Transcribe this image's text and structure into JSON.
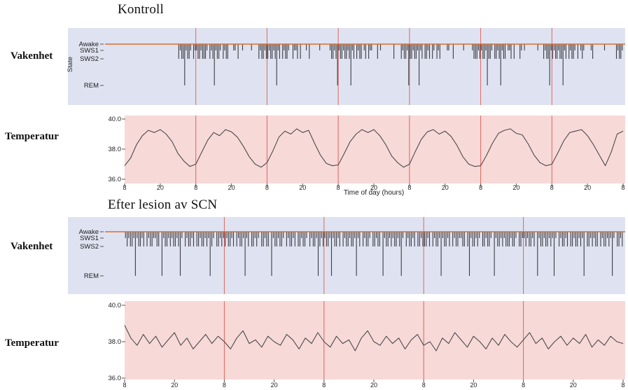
{
  "headings": {
    "control": "Kontroll",
    "lesion": "Efter lesion av SCN"
  },
  "row_labels": {
    "wakefulness": "Vakenhet",
    "temperature": "Temperatur"
  },
  "colors": {
    "hypnogram_bg": "#dfe3f1",
    "temp_bg": "#f7d9d8",
    "awake_line": "#d8702f",
    "grid_line": "#e0655a",
    "hypno_stroke": "#3b3b42",
    "temp_trace": "#4b4b4b",
    "tick": "#555555"
  },
  "chart_data": [
    {
      "id": "control_hypnogram",
      "type": "hypnogram",
      "section": "Kontroll",
      "ylabel": "State",
      "states": [
        "Awake",
        "SWS1",
        "SWS2",
        "REM"
      ],
      "days": 7,
      "encoding": "one digit per time slot: 0=Awake 1=SWS1 2=SWS2 3=REM",
      "day_strings": [
        "000000000000000000000000000000000000212231221021",
        "122122210212312210212200011020010000010000212212",
        "212212312021221002112020001020000001000000122123",
        "122122123120212201202110002010000000020000212213",
        "221221312022120210212000011002000000100000122212",
        "122132210221231220112020002101000000001000212231",
        "212212231202122102012100001200000001000000021221"
      ]
    },
    {
      "id": "control_temperature",
      "type": "line",
      "section": "Kontroll",
      "xlabel": "Time of day (hours)",
      "xticklabels": [
        "8",
        "20",
        "8",
        "20",
        "8",
        "20",
        "8",
        "20",
        "8",
        "20",
        "8",
        "20",
        "8",
        "20",
        "8"
      ],
      "yticklabels": [
        "40.0",
        "38.0",
        "36.0"
      ],
      "ylim": [
        36.0,
        40.0
      ],
      "values_degC": [
        36.9,
        37.4,
        38.3,
        38.9,
        39.25,
        39.1,
        39.3,
        39.0,
        38.5,
        37.7,
        37.2,
        36.85,
        37.0,
        37.8,
        38.6,
        39.1,
        38.9,
        39.3,
        39.15,
        38.8,
        38.2,
        37.5,
        37.0,
        36.8,
        37.1,
        37.9,
        38.8,
        39.2,
        39.0,
        39.35,
        39.1,
        39.25,
        38.4,
        37.6,
        37.05,
        36.9,
        36.95,
        37.7,
        38.5,
        39.0,
        39.3,
        39.1,
        39.3,
        38.9,
        38.3,
        37.55,
        37.1,
        36.8,
        37.0,
        37.85,
        38.65,
        39.15,
        39.3,
        39.0,
        39.2,
        38.85,
        38.25,
        37.5,
        37.0,
        36.85,
        36.9,
        37.6,
        38.4,
        39.05,
        39.25,
        39.35,
        39.05,
        38.95,
        38.35,
        37.6,
        37.1,
        36.9,
        37.0,
        37.75,
        38.55,
        39.1,
        39.2,
        39.3,
        38.9,
        38.3,
        37.6,
        36.9,
        37.8,
        39.0,
        39.2
      ]
    },
    {
      "id": "lesion_hypnogram",
      "type": "hypnogram",
      "section": "Efter lesion av SCN",
      "states": [
        "Awake",
        "SWS1",
        "SWS2",
        "REM"
      ],
      "days": 5,
      "encoding": "one digit per time slot: 0=Awake 1=SWS1 2=SWS2 3=REM",
      "day_strings": [
        "121221312212021221122031221212212310212212022122121321022121",
        "212212021221312022121022122031221221021221202212210212213212",
        "122131221202122122131202122102212203122121221231021221202212",
        "221202122131221202122112202312212102212210312212122212210221",
        "121221203122122121310212212022122121302212122021221213102212"
      ]
    },
    {
      "id": "lesion_temperature",
      "type": "line",
      "section": "Efter lesion av SCN",
      "xticklabels": [
        "8",
        "20",
        "8",
        "20",
        "8",
        "20",
        "8",
        "20",
        "8",
        "20",
        "8"
      ],
      "yticklabels": [
        "40.0",
        "38.0",
        "36.0"
      ],
      "ylim": [
        36.0,
        40.0
      ],
      "values_degC": [
        38.9,
        38.2,
        37.8,
        38.4,
        37.9,
        38.3,
        37.7,
        38.1,
        38.5,
        37.8,
        38.2,
        37.6,
        38.0,
        38.4,
        37.9,
        38.3,
        38.0,
        37.6,
        38.2,
        38.6,
        37.9,
        38.1,
        37.7,
        38.3,
        38.0,
        37.8,
        38.4,
        38.1,
        37.6,
        38.2,
        37.9,
        38.5,
        38.0,
        37.7,
        38.3,
        37.9,
        38.1,
        37.5,
        38.2,
        38.6,
        38.0,
        37.8,
        38.3,
        37.9,
        38.2,
        37.6,
        38.1,
        38.4,
        37.8,
        38.0,
        37.5,
        38.2,
        37.9,
        38.5,
        38.1,
        37.7,
        38.3,
        38.0,
        37.6,
        38.2,
        37.8,
        38.4,
        38.0,
        37.7,
        38.1,
        38.5,
        37.9,
        38.2,
        37.6,
        38.0,
        38.3,
        37.8,
        38.2,
        37.9,
        38.4,
        37.7,
        38.1,
        37.8,
        38.3,
        38.0,
        37.9
      ]
    }
  ]
}
